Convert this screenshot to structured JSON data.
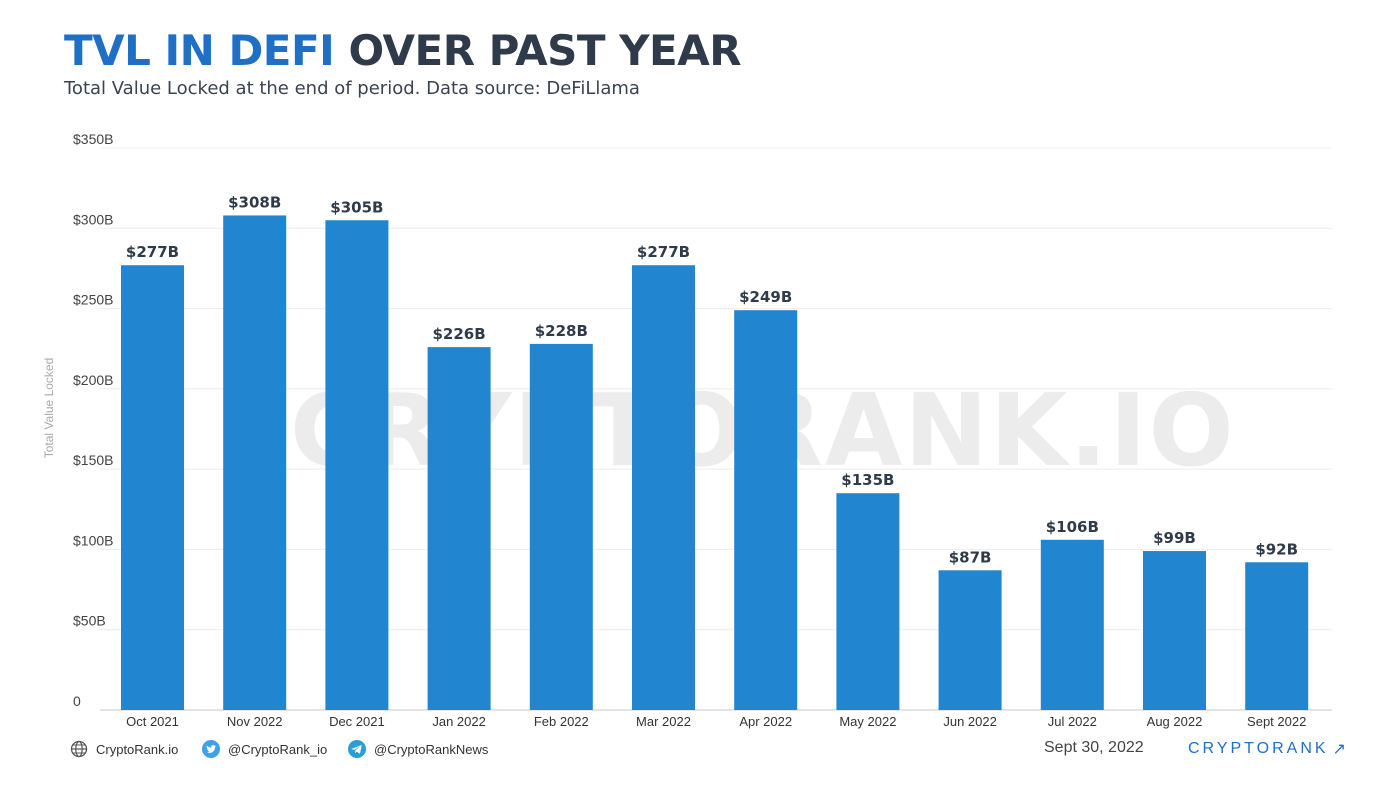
{
  "header": {
    "title_accent": "TVL IN DEFI",
    "title_rest": "OVER PAST YEAR",
    "subtitle": "Total Value Locked at the end of period. Data source: DeFiLlama"
  },
  "watermark": "CRYPTORANK.IO",
  "chart_data": {
    "type": "bar",
    "ylabel": "Total Value Locked",
    "ylim": [
      0,
      350
    ],
    "grid": true,
    "yticks": [
      0,
      50,
      100,
      150,
      200,
      250,
      300,
      350
    ],
    "ytick_labels": [
      "0",
      "$50B",
      "$100B",
      "$150B",
      "$200B",
      "$250B",
      "$300B",
      "$350B"
    ],
    "categories": [
      "Oct 2021",
      "Nov 2022",
      "Dec 2021",
      "Jan 2022",
      "Feb 2022",
      "Mar 2022",
      "Apr 2022",
      "May 2022",
      "Jun 2022",
      "Jul 2022",
      "Aug 2022",
      "Sept 2022"
    ],
    "values": [
      277,
      308,
      305,
      226,
      228,
      277,
      249,
      135,
      87,
      106,
      99,
      92
    ],
    "data_labels": [
      "$277B",
      "$308B",
      "$305B",
      "$226B",
      "$228B",
      "$277B",
      "$249B",
      "$135B",
      "$87B",
      "$106B",
      "$99B",
      "$92B"
    ],
    "bar_color": "#2285d0"
  },
  "footer": {
    "website": "CryptoRank.io",
    "twitter": "@CryptoRank_io",
    "telegram": "@CryptoRankNews",
    "date": "Sept 30, 2022",
    "brand": "CRYPTORANK",
    "brand_arrow": "↗",
    "website_icon": "globe-icon",
    "twitter_icon": "twitter-icon",
    "telegram_icon": "telegram-icon"
  }
}
